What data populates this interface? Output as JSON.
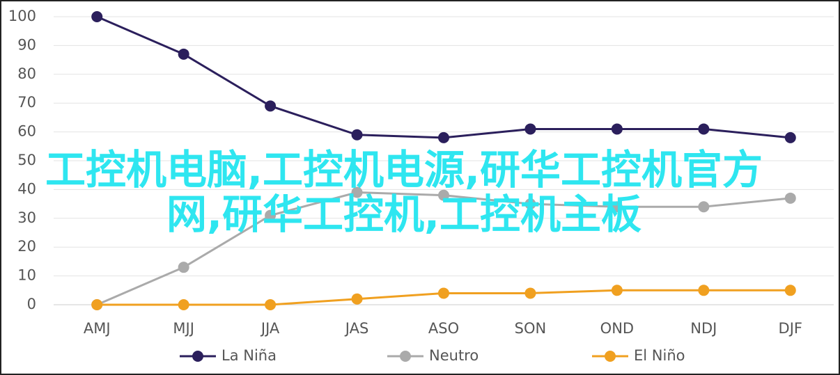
{
  "chart_data": {
    "type": "line",
    "categories": [
      "AMJ",
      "MJJ",
      "JJA",
      "JAS",
      "ASO",
      "SON",
      "OND",
      "NDJ",
      "DJF"
    ],
    "series": [
      {
        "name": "La Niña",
        "color": "#2b1f5c",
        "values": [
          100,
          87,
          69,
          59,
          58,
          61,
          61,
          61,
          58
        ]
      },
      {
        "name": "Neutro",
        "color": "#aaaaaa",
        "values": [
          0,
          13,
          31,
          39,
          38,
          35,
          34,
          34,
          37
        ]
      },
      {
        "name": "El Niño",
        "color": "#f0a020",
        "values": [
          0,
          0,
          0,
          2,
          4,
          4,
          5,
          5,
          5
        ]
      }
    ],
    "ylim": [
      0,
      100
    ],
    "yticks": [
      0,
      10,
      20,
      30,
      40,
      50,
      60,
      70,
      80,
      90,
      100
    ],
    "grid": true,
    "legend": "bottom"
  },
  "overlay_text": "工控机电脑,工控机电源,研华工控机官方网,研华工控机,工控机主板"
}
